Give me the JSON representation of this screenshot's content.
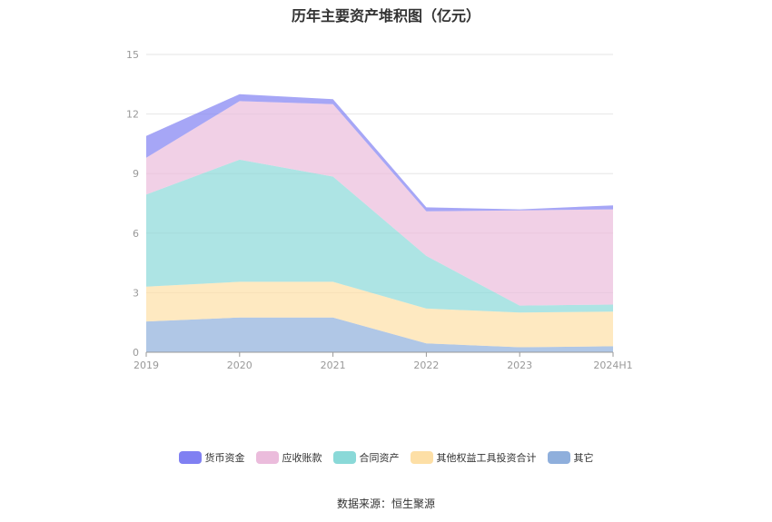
{
  "title": "历年主要资产堆积图（亿元）",
  "source": "数据来源：恒生聚源",
  "chart_data": {
    "type": "area",
    "stacked": true,
    "x": [
      "2019",
      "2020",
      "2021",
      "2022",
      "2023",
      "2024H1"
    ],
    "ylim": [
      0,
      15
    ],
    "yticks": [
      "0",
      "3",
      "6",
      "9",
      "12",
      "15"
    ],
    "grid": true,
    "legend_position": "bottom",
    "series": [
      {
        "name": "其它",
        "color": "#8fafdc",
        "values": [
          1.55,
          1.75,
          1.75,
          0.45,
          0.25,
          0.3
        ]
      },
      {
        "name": "其他权益工具投资合计",
        "color": "#fddfa6",
        "values": [
          1.75,
          1.8,
          1.8,
          1.75,
          1.75,
          1.75
        ]
      },
      {
        "name": "合同资产",
        "color": "#8ad9d8",
        "values": [
          4.65,
          6.15,
          5.3,
          2.65,
          0.35,
          0.35
        ]
      },
      {
        "name": "应收账款",
        "color": "#ebbcdc",
        "values": [
          1.85,
          2.95,
          3.65,
          2.25,
          4.8,
          4.8
        ]
      },
      {
        "name": "货币资金",
        "color": "#8080f2",
        "values": [
          1.1,
          0.35,
          0.25,
          0.2,
          0.05,
          0.2
        ]
      }
    ]
  }
}
